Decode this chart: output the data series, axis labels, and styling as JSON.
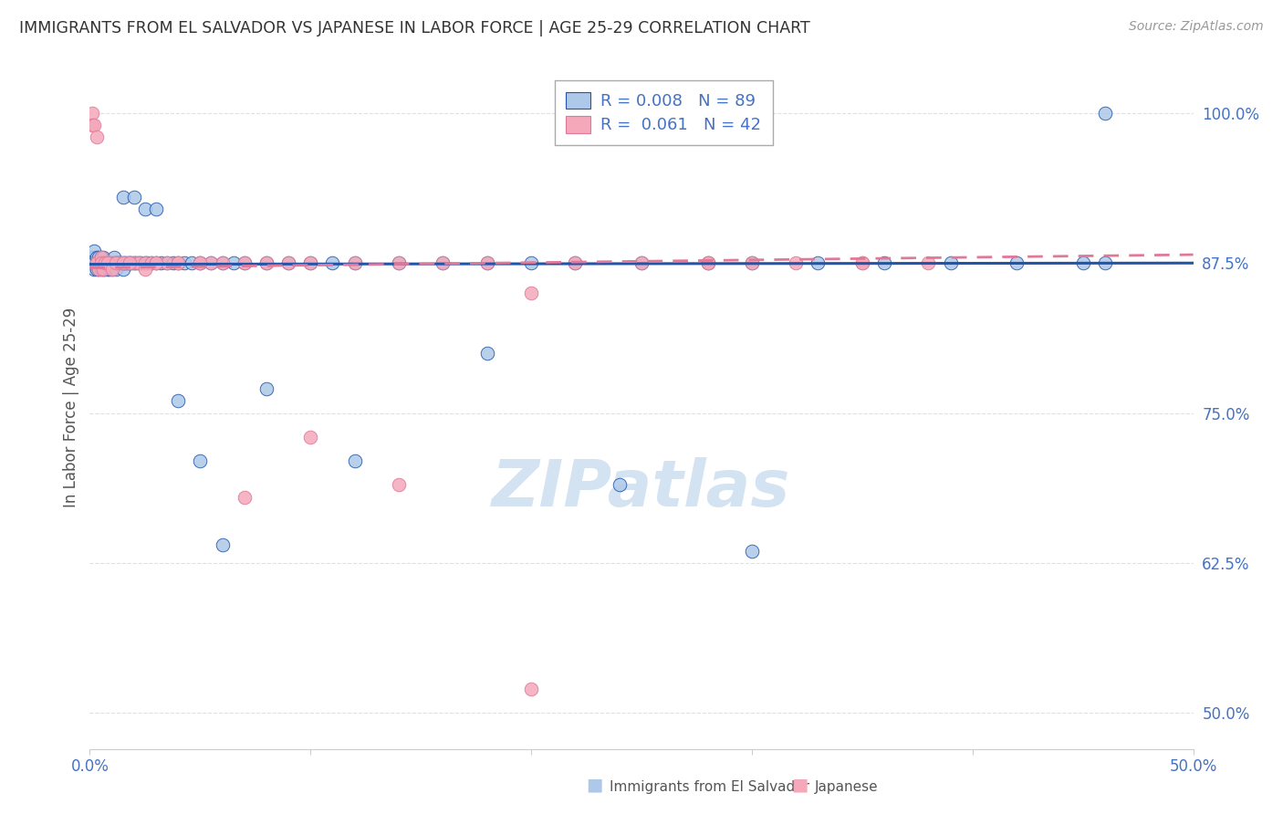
{
  "title": "IMMIGRANTS FROM EL SALVADOR VS JAPANESE IN LABOR FORCE | AGE 25-29 CORRELATION CHART",
  "source": "Source: ZipAtlas.com",
  "ylabel": "In Labor Force | Age 25-29",
  "ytick_labels": [
    "50.0%",
    "62.5%",
    "75.0%",
    "87.5%",
    "100.0%"
  ],
  "ytick_values": [
    0.5,
    0.625,
    0.75,
    0.875,
    1.0
  ],
  "xlim": [
    0.0,
    0.5
  ],
  "ylim": [
    0.47,
    1.04
  ],
  "blue_label": "Immigrants from El Salvador",
  "pink_label": "Japanese",
  "blue_R": "0.008",
  "blue_N": "89",
  "pink_R": "0.061",
  "pink_N": "42",
  "blue_color": "#adc8e8",
  "pink_color": "#f4a8ba",
  "blue_line_color": "#2255aa",
  "pink_line_color": "#e07898",
  "axis_color": "#4472c4",
  "watermark_color": "#d0e0f0",
  "grid_color": "#e0e0e0",
  "bottom_spine_color": "#cccccc",
  "blue_x": [
    0.001,
    0.001,
    0.002,
    0.002,
    0.002,
    0.003,
    0.003,
    0.003,
    0.004,
    0.004,
    0.004,
    0.005,
    0.005,
    0.005,
    0.006,
    0.006,
    0.006,
    0.007,
    0.007,
    0.007,
    0.008,
    0.008,
    0.009,
    0.009,
    0.01,
    0.01,
    0.011,
    0.011,
    0.012,
    0.012,
    0.013,
    0.014,
    0.015,
    0.015,
    0.016,
    0.017,
    0.018,
    0.019,
    0.02,
    0.021,
    0.022,
    0.023,
    0.025,
    0.026,
    0.028,
    0.03,
    0.032,
    0.035,
    0.038,
    0.04,
    0.043,
    0.046,
    0.05,
    0.055,
    0.06,
    0.065,
    0.07,
    0.08,
    0.09,
    0.1,
    0.11,
    0.12,
    0.14,
    0.16,
    0.18,
    0.2,
    0.22,
    0.25,
    0.28,
    0.3,
    0.33,
    0.36,
    0.39,
    0.42,
    0.45,
    0.46,
    0.025,
    0.015,
    0.02,
    0.03,
    0.04,
    0.05,
    0.06,
    0.08,
    0.12,
    0.18,
    0.24,
    0.3,
    0.46
  ],
  "blue_y": [
    0.875,
    0.88,
    0.875,
    0.87,
    0.885,
    0.875,
    0.87,
    0.88,
    0.875,
    0.88,
    0.87,
    0.875,
    0.87,
    0.88,
    0.875,
    0.87,
    0.88,
    0.875,
    0.87,
    0.875,
    0.875,
    0.87,
    0.875,
    0.87,
    0.875,
    0.87,
    0.875,
    0.88,
    0.875,
    0.87,
    0.875,
    0.875,
    0.87,
    0.875,
    0.875,
    0.875,
    0.875,
    0.875,
    0.875,
    0.875,
    0.875,
    0.875,
    0.875,
    0.875,
    0.875,
    0.875,
    0.875,
    0.875,
    0.875,
    0.875,
    0.875,
    0.875,
    0.875,
    0.875,
    0.875,
    0.875,
    0.875,
    0.875,
    0.875,
    0.875,
    0.875,
    0.875,
    0.875,
    0.875,
    0.875,
    0.875,
    0.875,
    0.875,
    0.875,
    0.875,
    0.875,
    0.875,
    0.875,
    0.875,
    0.875,
    1.0,
    0.92,
    0.93,
    0.93,
    0.92,
    0.76,
    0.71,
    0.64,
    0.77,
    0.71,
    0.8,
    0.69,
    0.635,
    0.875
  ],
  "pink_x": [
    0.001,
    0.001,
    0.002,
    0.003,
    0.003,
    0.004,
    0.005,
    0.006,
    0.007,
    0.008,
    0.009,
    0.01,
    0.012,
    0.014,
    0.016,
    0.018,
    0.02,
    0.022,
    0.025,
    0.028,
    0.03,
    0.035,
    0.04,
    0.05,
    0.055,
    0.06,
    0.07,
    0.08,
    0.09,
    0.1,
    0.12,
    0.14,
    0.16,
    0.18,
    0.2,
    0.22,
    0.25,
    0.28,
    0.3,
    0.32,
    0.35,
    0.38
  ],
  "pink_y": [
    1.0,
    0.99,
    0.99,
    0.98,
    0.875,
    0.875,
    0.875,
    0.875,
    0.875,
    0.875,
    0.875,
    0.875,
    0.875,
    0.875,
    0.875,
    0.875,
    0.875,
    0.875,
    0.875,
    0.875,
    0.875,
    0.875,
    0.875,
    0.875,
    0.875,
    0.875,
    0.875,
    0.875,
    0.875,
    0.875,
    0.875,
    0.875,
    0.875,
    0.875,
    0.85,
    0.875,
    0.875,
    0.875,
    0.875,
    0.875,
    0.875,
    0.875
  ],
  "pink_extra_x": [
    0.003,
    0.004,
    0.005,
    0.005,
    0.006,
    0.007,
    0.008,
    0.01,
    0.012,
    0.015,
    0.018,
    0.025,
    0.03,
    0.04,
    0.05,
    0.07,
    0.1,
    0.14,
    0.2,
    0.28,
    0.35
  ],
  "pink_extra_y": [
    0.875,
    0.87,
    0.88,
    0.875,
    0.87,
    0.875,
    0.875,
    0.87,
    0.875,
    0.875,
    0.875,
    0.87,
    0.875,
    0.875,
    0.875,
    0.68,
    0.73,
    0.69,
    0.52,
    0.875,
    0.875
  ]
}
